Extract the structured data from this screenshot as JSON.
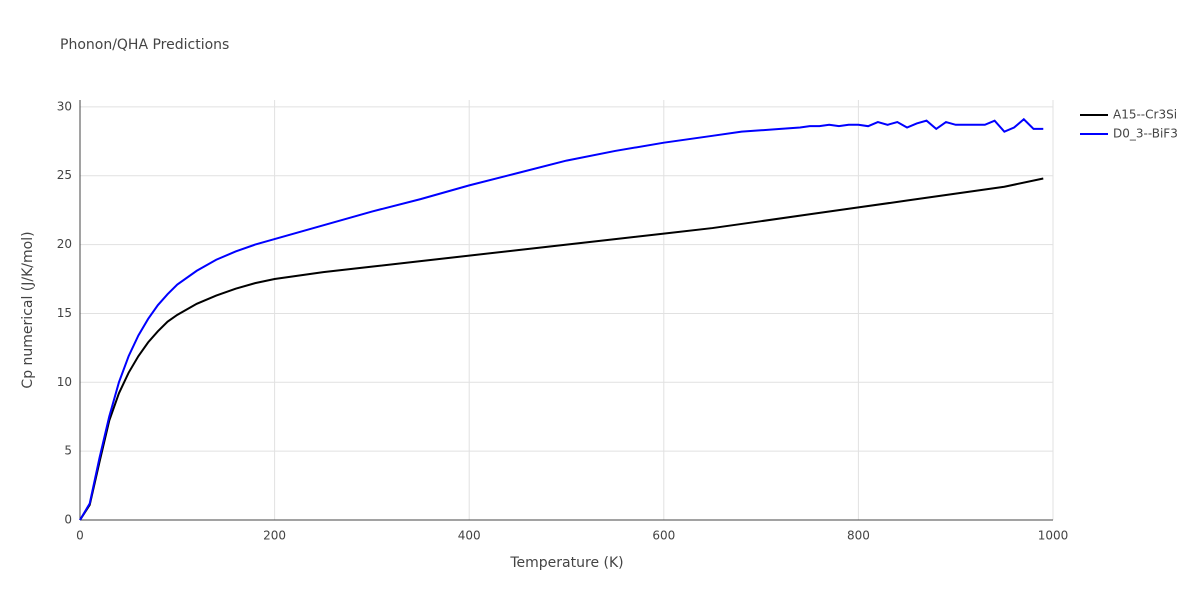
{
  "chart_data": {
    "type": "line",
    "title": "Phonon/QHA Predictions",
    "x_label": "Temperature (K)",
    "y_label": "Cp numerical (J/K/mol)",
    "xlim": [
      0,
      1000
    ],
    "xticks": [
      0,
      200,
      400,
      600,
      800,
      1000
    ],
    "ylim": [
      0,
      30.5
    ],
    "yticks": [
      0,
      5,
      10,
      15,
      20,
      25,
      30
    ],
    "grid": true,
    "legend": "top-right",
    "series": [
      {
        "name": "A15--Cr3Si",
        "color": "#000000",
        "x": [
          0,
          10,
          20,
          30,
          40,
          50,
          60,
          70,
          80,
          90,
          100,
          120,
          140,
          160,
          180,
          200,
          250,
          300,
          350,
          400,
          450,
          500,
          550,
          600,
          650,
          700,
          750,
          800,
          850,
          900,
          950,
          990
        ],
        "values": [
          0,
          1.1,
          4.2,
          7.2,
          9.2,
          10.7,
          11.9,
          12.9,
          13.7,
          14.4,
          14.9,
          15.7,
          16.3,
          16.8,
          17.2,
          17.5,
          18.0,
          18.4,
          18.8,
          19.2,
          19.6,
          20.0,
          20.4,
          20.8,
          21.2,
          21.7,
          22.2,
          22.7,
          23.2,
          23.7,
          24.2,
          24.8
        ]
      },
      {
        "name": "D0_3--BiF3",
        "color": "#0000ff",
        "x": [
          0,
          10,
          20,
          30,
          40,
          50,
          60,
          70,
          80,
          90,
          100,
          120,
          140,
          160,
          180,
          200,
          250,
          300,
          350,
          400,
          450,
          500,
          550,
          600,
          650,
          680,
          700,
          720,
          740,
          750,
          760,
          770,
          780,
          790,
          800,
          810,
          820,
          830,
          840,
          850,
          860,
          870,
          880,
          890,
          900,
          910,
          930,
          940,
          950,
          960,
          970,
          980,
          990
        ],
        "values": [
          0,
          1.2,
          4.5,
          7.5,
          10.0,
          11.9,
          13.4,
          14.6,
          15.6,
          16.4,
          17.1,
          18.1,
          18.9,
          19.5,
          20.0,
          20.4,
          21.4,
          22.4,
          23.3,
          24.3,
          25.2,
          26.1,
          26.8,
          27.4,
          27.9,
          28.2,
          28.3,
          28.4,
          28.5,
          28.6,
          28.6,
          28.7,
          28.6,
          28.7,
          28.7,
          28.6,
          28.9,
          28.7,
          28.9,
          28.5,
          28.8,
          29.0,
          28.4,
          28.9,
          28.7,
          28.7,
          28.7,
          29.0,
          28.2,
          28.5,
          29.1,
          28.4,
          28.4
        ]
      }
    ]
  }
}
